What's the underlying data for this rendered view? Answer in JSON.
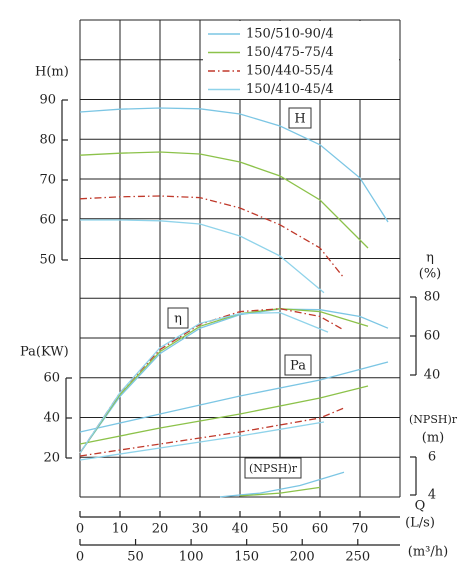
{
  "chart_data": {
    "type": "line",
    "x_label": "Q",
    "x_unit": "(L/s)",
    "x2_unit": "(m³/h)",
    "xlim": [
      0,
      80
    ],
    "xticks": [
      0,
      10,
      20,
      30,
      40,
      50,
      60,
      70
    ],
    "x2lim": [
      0,
      288
    ],
    "x2ticks": [
      0,
      50,
      100,
      150,
      200,
      250
    ],
    "head_axis": {
      "label": "H(m)",
      "box": "H",
      "lim": [
        50,
        90
      ],
      "ticks": [
        50,
        60,
        70,
        80,
        90
      ]
    },
    "efficiency_axis": {
      "label": "η",
      "unit": "(%)",
      "box": "η",
      "lim": [
        40,
        80
      ],
      "ticks": [
        40,
        60,
        80
      ]
    },
    "power_axis": {
      "label": "Pa(KW)",
      "box": "Pa",
      "lim": [
        20,
        60
      ],
      "ticks": [
        20,
        40,
        60
      ]
    },
    "npsh_axis": {
      "label": "(NPSH)r",
      "unit": "(m)",
      "box": "(NPSH)r",
      "lim": [
        4,
        6
      ],
      "ticks": [
        4,
        6
      ]
    },
    "series": [
      {
        "name": "150/510-90/4",
        "color": "#7cc6e4",
        "dash": false,
        "head": {
          "x": [
            0,
            10,
            20,
            30,
            40,
            50,
            60,
            70,
            77
          ],
          "values": [
            87,
            87.7,
            88,
            87.8,
            86.5,
            83.5,
            78.8,
            70.5,
            59.5
          ]
        },
        "efficiency": {
          "x": [
            0,
            10,
            20,
            30,
            40,
            50,
            60,
            70,
            77
          ],
          "values": [
            0,
            29,
            51,
            64,
            71,
            73.8,
            73.5,
            70,
            64
          ]
        },
        "power": {
          "x": [
            0,
            20,
            40,
            60,
            77
          ],
          "values": [
            33,
            42,
            51,
            59,
            68
          ]
        },
        "npsh": {
          "x": [
            35,
            45,
            55,
            66
          ],
          "values": [
            3.9,
            4.1,
            4.5,
            5.2
          ]
        }
      },
      {
        "name": "150/475-75/4",
        "color": "#8cc24a",
        "dash": false,
        "head": {
          "x": [
            0,
            10,
            20,
            30,
            40,
            50,
            60,
            72
          ],
          "values": [
            76.2,
            76.7,
            77,
            76.5,
            74.5,
            71,
            65,
            53
          ]
        },
        "efficiency": {
          "x": [
            0,
            10,
            20,
            30,
            40,
            50,
            60,
            72
          ],
          "values": [
            0,
            30,
            52,
            65,
            71.5,
            74,
            72.5,
            65
          ]
        },
        "power": {
          "x": [
            0,
            20,
            40,
            60,
            72
          ],
          "values": [
            27,
            35,
            42,
            50,
            56
          ]
        },
        "npsh": {
          "x": [
            40,
            50,
            60
          ],
          "values": [
            3.95,
            4.1,
            4.4
          ]
        }
      },
      {
        "name": "150/440-55/4",
        "color": "#c0392b",
        "dash": true,
        "head": {
          "x": [
            0,
            10,
            20,
            30,
            40,
            50,
            60,
            66
          ],
          "values": [
            65.3,
            65.8,
            66,
            65.6,
            63,
            58.8,
            53,
            45.5
          ]
        },
        "efficiency": {
          "x": [
            0,
            10,
            20,
            30,
            40,
            50,
            60,
            66
          ],
          "values": [
            0,
            31,
            53,
            66,
            72.5,
            74,
            70,
            63
          ]
        },
        "power": {
          "x": [
            0,
            20,
            40,
            60,
            66
          ],
          "values": [
            21,
            27,
            33,
            40,
            45
          ]
        }
      },
      {
        "name": "150/410-45/4",
        "color": "#8fd3ea",
        "dash": false,
        "head": {
          "x": [
            0,
            10,
            20,
            30,
            40,
            50,
            61
          ],
          "values": [
            60,
            60,
            59.8,
            59,
            56,
            51,
            41.8
          ]
        },
        "efficiency": {
          "x": [
            0,
            10,
            20,
            30,
            40,
            50,
            62
          ],
          "values": [
            0,
            31,
            54,
            66.5,
            71.5,
            72,
            62
          ]
        },
        "power": {
          "x": [
            0,
            20,
            40,
            61
          ],
          "values": [
            19,
            25,
            31,
            38
          ]
        }
      }
    ]
  }
}
